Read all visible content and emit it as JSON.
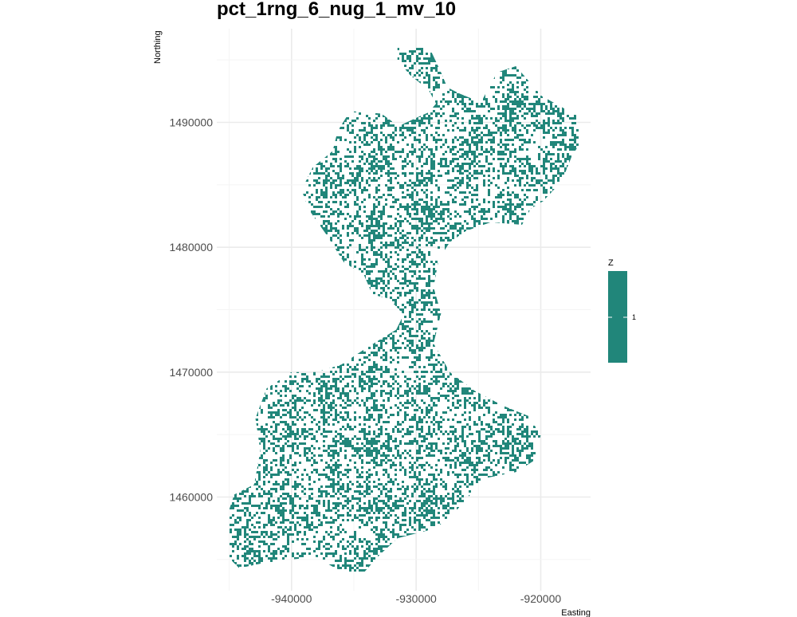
{
  "chart_data": {
    "type": "heatmap",
    "title": "pct_1rng_6_nug_1_mv_10",
    "xlabel": "Easting",
    "ylabel": "Northing",
    "x_ticks": [
      -940000,
      -930000,
      -920000
    ],
    "x_tick_labels": [
      "-940000",
      "-930000",
      "-920000"
    ],
    "y_ticks": [
      1460000,
      1470000,
      1480000,
      1490000
    ],
    "y_tick_labels": [
      "1460000",
      "1470000",
      "1480000",
      "1490000"
    ],
    "xlim": [
      -946000,
      -916000
    ],
    "ylim": [
      1452500,
      1497500
    ],
    "grid": true,
    "legend": {
      "title": "Z",
      "labels": [
        "1"
      ],
      "position": "right"
    },
    "fill_color": "#21867a",
    "region_outline": [
      [
        -931500,
        1496500
      ],
      [
        -929800,
        1496800
      ],
      [
        -928800,
        1495700
      ],
      [
        -928000,
        1494000
      ],
      [
        -927500,
        1492800
      ],
      [
        -926500,
        1492300
      ],
      [
        -924800,
        1491600
      ],
      [
        -923500,
        1494000
      ],
      [
        -922000,
        1494500
      ],
      [
        -919900,
        1492100
      ],
      [
        -917000,
        1490500
      ],
      [
        -916200,
        1489300
      ],
      [
        -917500,
        1487300
      ],
      [
        -918300,
        1485300
      ],
      [
        -919800,
        1483700
      ],
      [
        -920800,
        1483100
      ],
      [
        -921500,
        1481800
      ],
      [
        -924000,
        1482000
      ],
      [
        -926000,
        1481300
      ],
      [
        -927300,
        1480400
      ],
      [
        -928200,
        1479000
      ],
      [
        -928600,
        1476800
      ],
      [
        -928000,
        1474700
      ],
      [
        -928600,
        1472300
      ],
      [
        -927300,
        1470000
      ],
      [
        -925300,
        1468500
      ],
      [
        -923000,
        1467300
      ],
      [
        -921000,
        1466500
      ],
      [
        -920000,
        1465000
      ],
      [
        -920400,
        1463000
      ],
      [
        -922000,
        1462000
      ],
      [
        -924500,
        1461500
      ],
      [
        -926700,
        1459000
      ],
      [
        -928400,
        1457500
      ],
      [
        -931500,
        1456700
      ],
      [
        -933000,
        1455300
      ],
      [
        -934500,
        1453600
      ],
      [
        -936500,
        1454300
      ],
      [
        -938000,
        1455200
      ],
      [
        -940000,
        1455000
      ],
      [
        -942300,
        1454700
      ],
      [
        -944200,
        1454300
      ],
      [
        -945200,
        1455300
      ],
      [
        -945500,
        1457500
      ],
      [
        -944600,
        1460200
      ],
      [
        -943000,
        1461000
      ],
      [
        -942500,
        1463700
      ],
      [
        -942900,
        1466300
      ],
      [
        -942000,
        1468700
      ],
      [
        -940000,
        1470000
      ],
      [
        -938000,
        1470000
      ],
      [
        -936000,
        1470600
      ],
      [
        -934200,
        1471800
      ],
      [
        -932600,
        1472800
      ],
      [
        -931600,
        1473400
      ],
      [
        -931000,
        1474600
      ],
      [
        -932200,
        1475900
      ],
      [
        -933500,
        1476200
      ],
      [
        -934200,
        1477800
      ],
      [
        -935800,
        1478800
      ],
      [
        -937200,
        1481000
      ],
      [
        -938600,
        1483000
      ],
      [
        -939200,
        1484600
      ],
      [
        -938300,
        1486400
      ],
      [
        -936700,
        1487700
      ],
      [
        -936300,
        1489300
      ],
      [
        -935300,
        1490900
      ],
      [
        -932800,
        1490700
      ],
      [
        -931400,
        1489700
      ],
      [
        -929700,
        1490500
      ],
      [
        -929000,
        1490800
      ],
      [
        -928400,
        1491500
      ],
      [
        -929000,
        1492600
      ],
      [
        -930500,
        1493800
      ],
      [
        -931500,
        1495000
      ]
    ]
  }
}
